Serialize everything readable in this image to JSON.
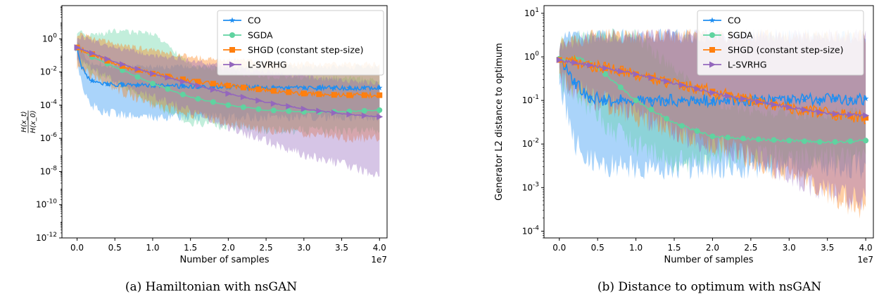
{
  "chart_data": [
    {
      "type": "line",
      "caption": "(a) Hamiltonian with nsGAN",
      "xlabel": "Number of samples",
      "ylabel": "H(x_t) / H(x_0)",
      "x_offset_label": "1e7",
      "yscale": "log",
      "xlim": [
        -0.2,
        4.1
      ],
      "ylim": [
        1e-12,
        100
      ],
      "x_ticks": [
        0.0,
        0.5,
        1.0,
        1.5,
        2.0,
        2.5,
        3.0,
        3.5,
        4.0
      ],
      "x_tick_labels": [
        "0.0",
        "0.5",
        "1.0",
        "1.5",
        "2.0",
        "2.5",
        "3.0",
        "3.5",
        "4.0"
      ],
      "y_ticks": [
        -12,
        -10,
        -8,
        -6,
        -4,
        -2,
        0
      ],
      "y_tick_labels": [
        "10^-12",
        "10^-10",
        "10^-8",
        "10^-6",
        "10^-4",
        "10^-2",
        "10^0"
      ],
      "legend_position": "top-right",
      "grid": false,
      "series": [
        {
          "name": "CO",
          "color": "#1f8ef1",
          "marker": "star",
          "x": [
            0,
            0.05,
            0.1,
            0.2,
            0.3,
            0.5,
            1.0,
            2.0,
            3.0,
            4.0
          ],
          "y": [
            0.25,
            0.03,
            0.008,
            0.003,
            0.002,
            0.0018,
            0.0015,
            0.0012,
            0.0011,
            0.0011
          ],
          "band_low": [
            0.05,
            0.003,
            0.0005,
            0.0001,
            5e-05,
            3e-05,
            2e-05,
            2e-05,
            2e-05,
            2e-05
          ],
          "band_high": [
            1.0,
            0.3,
            0.1,
            0.03,
            0.03,
            0.02,
            0.02,
            0.02,
            0.02,
            0.02
          ]
        },
        {
          "name": "SGDA",
          "color": "#5fd3a0",
          "marker": "circle",
          "x": [
            0,
            0.2,
            0.5,
            1.0,
            1.5,
            2.0,
            2.5,
            3.0,
            3.5,
            4.0
          ],
          "y": [
            0.3,
            0.08,
            0.02,
            0.002,
            0.0003,
            0.0001,
            5e-05,
            4e-05,
            4e-05,
            5e-05
          ],
          "band_low": [
            0.05,
            0.01,
            0.002,
            0.0001,
            1e-05,
            5e-06,
            3e-06,
            3e-06,
            3e-06,
            3e-06
          ],
          "band_high": [
            3.0,
            1.5,
            3.0,
            2.0,
            0.03,
            0.01,
            0.005,
            0.005,
            0.005,
            0.003
          ]
        },
        {
          "name": "SHGD (constant step-size)",
          "color": "#ff7f0e",
          "marker": "square",
          "x": [
            0,
            0.5,
            1.0,
            1.5,
            2.0,
            2.5,
            3.0,
            3.5,
            4.0
          ],
          "y": [
            0.3,
            0.03,
            0.008,
            0.003,
            0.0015,
            0.0008,
            0.0005,
            0.0004,
            0.0004
          ],
          "band_low": [
            0.02,
            0.001,
            0.0001,
            3e-05,
            8e-06,
            3e-06,
            2e-06,
            1e-06,
            1e-06
          ],
          "band_high": [
            2.0,
            0.5,
            0.2,
            0.08,
            0.05,
            0.04,
            0.03,
            0.03,
            0.03
          ]
        },
        {
          "name": "L-SVRHG",
          "color": "#9467bd",
          "marker": "triangle-right",
          "x": [
            0,
            0.5,
            1.0,
            1.5,
            2.0,
            2.5,
            3.0,
            3.5,
            4.0
          ],
          "y": [
            0.3,
            0.04,
            0.008,
            0.002,
            0.0005,
            0.00015,
            6e-05,
            3e-05,
            2e-05
          ],
          "band_low": [
            0.05,
            0.003,
            0.0003,
            5e-05,
            5e-06,
            7e-07,
            1e-07,
            3e-08,
            6e-09
          ],
          "band_high": [
            1.5,
            0.3,
            0.1,
            0.05,
            0.02,
            0.01,
            0.005,
            0.003,
            0.002
          ]
        }
      ]
    },
    {
      "type": "line",
      "caption": "(b) Distance to optimum with nsGAN",
      "xlabel": "Number of samples",
      "ylabel": "Generator L2 distance to optimum",
      "x_offset_label": "1e7",
      "yscale": "log",
      "xlim": [
        -0.2,
        4.1
      ],
      "ylim": [
        7e-05,
        15
      ],
      "x_ticks": [
        0.0,
        0.5,
        1.0,
        1.5,
        2.0,
        2.5,
        3.0,
        3.5,
        4.0
      ],
      "x_tick_labels": [
        "0.0",
        "0.5",
        "1.0",
        "1.5",
        "2.0",
        "2.5",
        "3.0",
        "3.5",
        "4.0"
      ],
      "y_ticks": [
        -4,
        -3,
        -2,
        -1,
        0,
        1
      ],
      "y_tick_labels": [
        "10^-4",
        "10^-3",
        "10^-2",
        "10^-1",
        "10^0",
        "10^1"
      ],
      "legend_position": "top-right",
      "grid": false,
      "series": [
        {
          "name": "CO",
          "color": "#1f8ef1",
          "marker": "star",
          "x": [
            0,
            0.1,
            0.2,
            0.4,
            0.6,
            1.0,
            2.0,
            3.0,
            4.0
          ],
          "y": [
            0.9,
            0.6,
            0.25,
            0.12,
            0.1,
            0.1,
            0.1,
            0.1,
            0.11
          ],
          "band_low": [
            0.3,
            0.05,
            0.01,
            0.005,
            0.003,
            0.003,
            0.003,
            0.003,
            0.003
          ],
          "band_high": [
            2.0,
            3.0,
            3.0,
            3.0,
            3.0,
            3.0,
            3.0,
            3.0,
            3.0
          ]
        },
        {
          "name": "SGDA",
          "color": "#5fd3a0",
          "marker": "circle",
          "x": [
            0,
            0.3,
            0.6,
            1.0,
            1.5,
            2.0,
            2.5,
            3.0,
            3.5,
            4.0
          ],
          "y": [
            0.9,
            0.9,
            0.4,
            0.1,
            0.03,
            0.015,
            0.013,
            0.012,
            0.011,
            0.012
          ],
          "band_low": [
            0.3,
            0.1,
            0.03,
            0.01,
            0.004,
            0.005,
            0.005,
            0.005,
            0.005,
            0.005
          ],
          "band_high": [
            2.0,
            3.0,
            3.0,
            3.0,
            0.5,
            0.1,
            0.06,
            0.05,
            0.05,
            0.05
          ]
        },
        {
          "name": "SHGD (constant step-size)",
          "color": "#ff7f0e",
          "marker": "square",
          "x": [
            0,
            0.5,
            1.0,
            1.5,
            2.0,
            2.5,
            3.0,
            3.5,
            4.0
          ],
          "y": [
            0.85,
            0.6,
            0.4,
            0.25,
            0.16,
            0.1,
            0.07,
            0.05,
            0.04
          ],
          "band_low": [
            0.3,
            0.1,
            0.05,
            0.02,
            0.01,
            0.005,
            0.002,
            0.0008,
            0.0003
          ],
          "band_high": [
            2.0,
            3.0,
            3.0,
            3.0,
            3.0,
            3.0,
            3.0,
            3.0,
            3.0
          ]
        },
        {
          "name": "L-SVRHG",
          "color": "#9467bd",
          "marker": "triangle-right",
          "x": [
            0,
            0.5,
            1.0,
            1.5,
            2.0,
            2.5,
            3.0,
            3.5,
            4.0
          ],
          "y": [
            0.85,
            0.6,
            0.4,
            0.25,
            0.15,
            0.1,
            0.07,
            0.05,
            0.045
          ],
          "band_low": [
            0.3,
            0.1,
            0.05,
            0.02,
            0.01,
            0.005,
            0.002,
            0.0008,
            0.0005
          ],
          "band_high": [
            2.0,
            3.0,
            3.0,
            3.0,
            3.0,
            3.0,
            3.0,
            3.0,
            3.0
          ]
        }
      ]
    }
  ]
}
